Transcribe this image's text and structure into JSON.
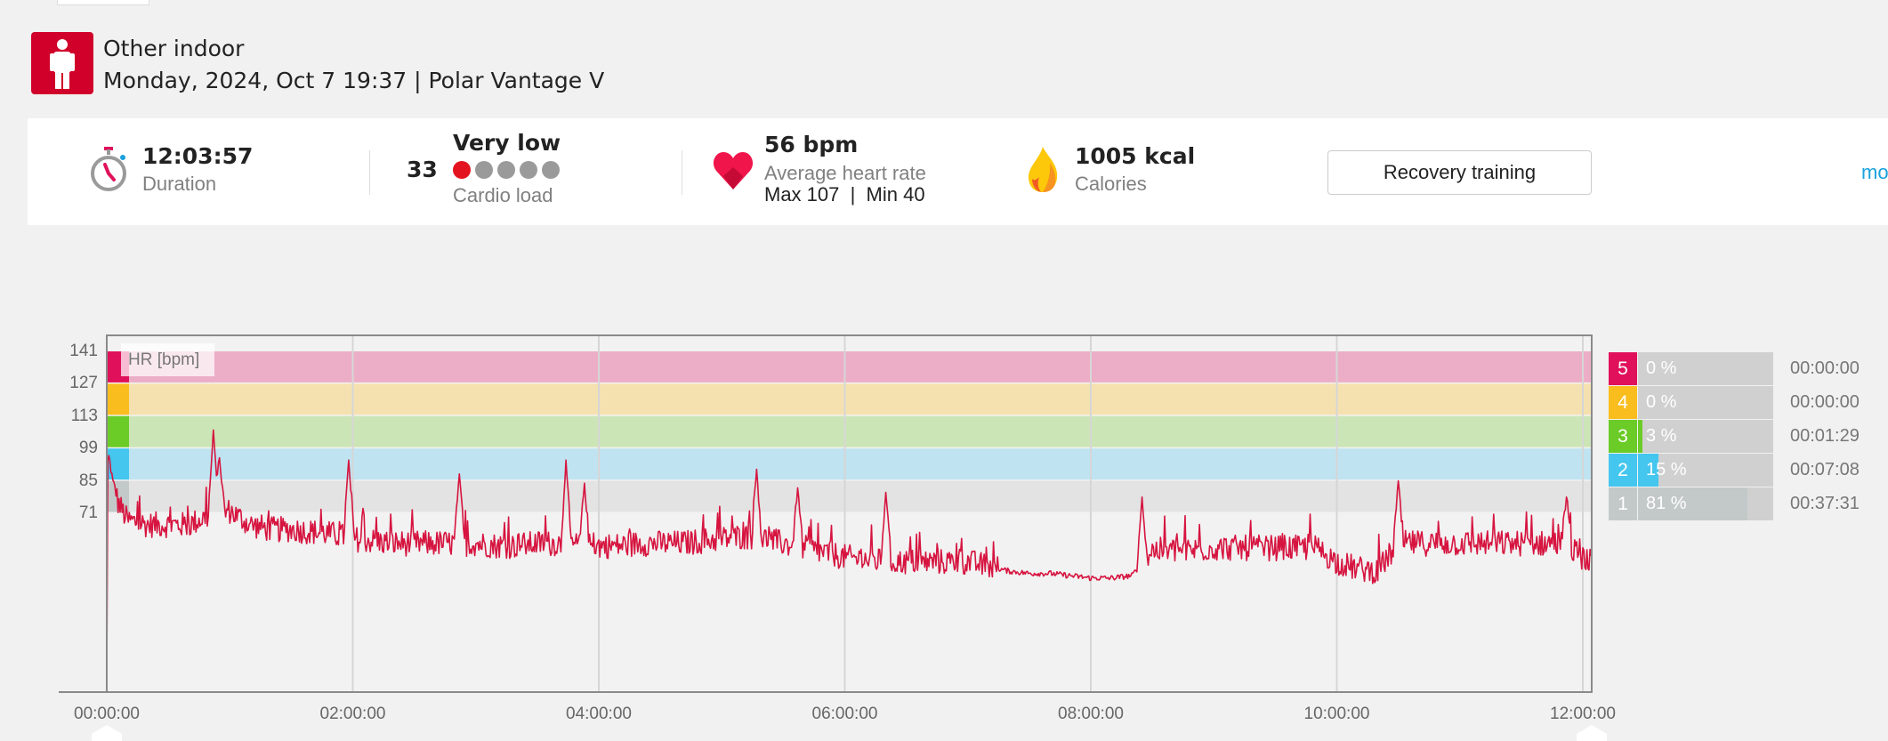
{
  "header": {
    "sport": "Other indoor",
    "subtitle": "Monday, 2024, Oct 7 19:37 | Polar Vantage V",
    "sport_icon": "person-icon"
  },
  "summary": {
    "duration": {
      "value": "12:03:57",
      "label": "Duration",
      "icon": "stopwatch-icon"
    },
    "cardio_load": {
      "value": "33",
      "level": "Very low",
      "label": "Cardio load",
      "level_dots_filled": 1,
      "level_dots_total": 5
    },
    "heart_rate": {
      "value": "56 bpm",
      "label": "Average heart rate",
      "maxmin": "Max 107  |  Min 40",
      "icon": "heart-icon"
    },
    "calories": {
      "value": "1005 kcal",
      "label": "Calories",
      "icon": "flame-icon"
    },
    "benefit_button": "Recovery training",
    "more_link": "more"
  },
  "colors": {
    "accent": "#d0002a",
    "line": "#d6143f",
    "link": "#1aa0dc"
  },
  "zones": [
    {
      "zone": "5",
      "pct": "0 %",
      "pct_value": 0,
      "time": "00:00:00",
      "color": "#e0115a",
      "band": "#ecaec6"
    },
    {
      "zone": "4",
      "pct": "0 %",
      "pct_value": 0,
      "time": "00:00:00",
      "color": "#f9bd1e",
      "band": "#f5e1b0"
    },
    {
      "zone": "3",
      "pct": "3 %",
      "pct_value": 3,
      "time": "00:01:29",
      "color": "#6bcb27",
      "band": "#cce5b7"
    },
    {
      "zone": "2",
      "pct": "15 %",
      "pct_value": 15,
      "time": "00:07:08",
      "color": "#44c6ee",
      "band": "#bfe3f0"
    },
    {
      "zone": "1",
      "pct": "81 %",
      "pct_value": 81,
      "time": "00:37:31",
      "color": "#c3c9c8",
      "band": "#e2e3e2"
    }
  ],
  "chart_data": {
    "type": "line",
    "ylabel": "HR [bpm]",
    "yticks": [
      "141",
      "127",
      "113",
      "99",
      "85",
      "71"
    ],
    "ytick_values": [
      141,
      127,
      113,
      99,
      85,
      71
    ],
    "ylim": [
      0,
      148
    ],
    "xticks": [
      "00:00:00",
      "02:00:00",
      "04:00:00",
      "06:00:00",
      "08:00:00",
      "10:00:00",
      "12:00:00"
    ],
    "xtick_minutes": [
      0,
      120,
      240,
      360,
      480,
      600,
      720
    ],
    "xlim_minutes": [
      0,
      724
    ],
    "zone_bounds": [
      [
        127,
        141
      ],
      [
        113,
        127
      ],
      [
        99,
        113
      ],
      [
        85,
        99
      ],
      [
        71,
        85
      ]
    ],
    "baseline_step_min": 10,
    "baseline_bpm": [
      85,
      68,
      66,
      66,
      66,
      70,
      72,
      66,
      64,
      64,
      63,
      62,
      60,
      59,
      58,
      58,
      58,
      58,
      58,
      57,
      57,
      58,
      58,
      57,
      57,
      57,
      58,
      58,
      58,
      59,
      60,
      61,
      60,
      58,
      56,
      54,
      52,
      51,
      50,
      50,
      50,
      50,
      50,
      48,
      46,
      45,
      45,
      44,
      43,
      43,
      44,
      55,
      55,
      55,
      56,
      56,
      56,
      56,
      56,
      56,
      50,
      47,
      46,
      58,
      58,
      58,
      58,
      58,
      58,
      58,
      58,
      58,
      52
    ],
    "spikes": [
      {
        "min": 1,
        "bpm": 96
      },
      {
        "min": 3,
        "bpm": 85
      },
      {
        "min": 52,
        "bpm": 107
      },
      {
        "min": 55,
        "bpm": 95
      },
      {
        "min": 118,
        "bpm": 94
      },
      {
        "min": 172,
        "bpm": 88
      },
      {
        "min": 224,
        "bpm": 94
      },
      {
        "min": 233,
        "bpm": 84
      },
      {
        "min": 317,
        "bpm": 90
      },
      {
        "min": 337,
        "bpm": 82
      },
      {
        "min": 380,
        "bpm": 80
      },
      {
        "min": 505,
        "bpm": 78
      },
      {
        "min": 630,
        "bpm": 85
      },
      {
        "min": 712,
        "bpm": 78
      }
    ],
    "noise_bpm": 7,
    "quiet_range_min": [
      435,
      505
    ],
    "start_bpm": 0
  }
}
